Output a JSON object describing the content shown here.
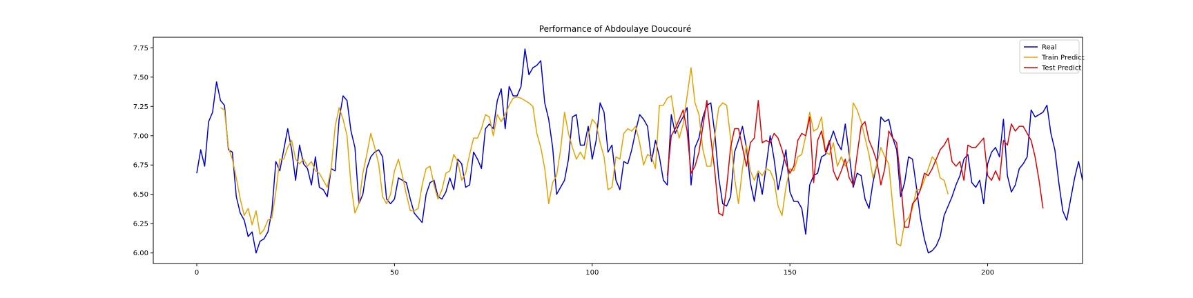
{
  "chart_data": {
    "type": "line",
    "title": "Performance of Abdoulaye Doucouré",
    "xlabel": "",
    "ylabel": "",
    "xlim": [
      -11,
      224
    ],
    "ylim": [
      5.91,
      7.84
    ],
    "x_ticks": [
      0,
      50,
      100,
      150,
      200
    ],
    "y_ticks": [
      6.0,
      6.25,
      6.5,
      6.75,
      7.0,
      7.25,
      7.5,
      7.75
    ],
    "y_tick_labels": [
      "6.00",
      "6.25",
      "6.50",
      "6.75",
      "7.00",
      "7.25",
      "7.50",
      "7.75"
    ],
    "grid": false,
    "legend_position": "top-right",
    "legend": [
      "Real",
      "Train Predict",
      "Test Predict"
    ],
    "series": [
      {
        "name": "Real",
        "color": "#0000cc",
        "x_start": 0,
        "values": [
          6.68,
          6.88,
          6.74,
          7.12,
          7.2,
          7.46,
          7.3,
          7.26,
          6.88,
          6.86,
          6.48,
          6.34,
          6.28,
          6.14,
          6.18,
          6.0,
          6.1,
          6.12,
          6.18,
          6.36,
          6.78,
          6.7,
          6.88,
          7.06,
          6.88,
          6.62,
          6.92,
          6.76,
          6.72,
          6.58,
          6.82,
          6.56,
          6.54,
          6.48,
          6.72,
          6.7,
          7.14,
          7.34,
          7.3,
          7.04,
          6.9,
          6.42,
          6.5,
          6.72,
          6.82,
          6.86,
          6.88,
          6.82,
          6.46,
          6.42,
          6.46,
          6.64,
          6.62,
          6.6,
          6.46,
          6.34,
          6.3,
          6.26,
          6.5,
          6.6,
          6.62,
          6.48,
          6.46,
          6.52,
          6.64,
          6.54,
          6.8,
          6.76,
          6.56,
          6.58,
          6.86,
          6.8,
          6.72,
          7.06,
          7.1,
          7.06,
          7.3,
          7.4,
          7.06,
          7.42,
          7.34,
          7.34,
          7.42,
          7.74,
          7.52,
          7.58,
          7.6,
          7.64,
          7.28,
          7.14,
          6.9,
          6.5,
          6.56,
          6.62,
          6.8,
          7.16,
          7.18,
          6.92,
          6.92,
          7.08,
          6.8,
          6.96,
          7.28,
          7.2,
          6.86,
          6.92,
          6.62,
          6.54,
          6.78,
          6.76,
          6.88,
          7.04,
          7.18,
          7.14,
          7.08,
          6.78,
          6.96,
          6.82,
          6.62,
          6.58,
          7.18,
          7.02,
          7.1,
          7.16,
          7.24,
          6.58,
          6.9,
          6.98,
          7.16,
          7.26,
          7.28,
          7.02,
          6.64,
          6.42,
          6.4,
          6.48,
          6.86,
          6.96,
          7.08,
          6.9,
          6.6,
          6.44,
          6.68,
          6.5,
          6.74,
          7.0,
          6.8,
          6.54,
          6.7,
          6.88,
          6.52,
          6.44,
          6.44,
          6.38,
          6.16,
          6.58,
          6.66,
          6.68,
          6.82,
          6.84,
          6.94,
          7.04,
          6.94,
          6.88,
          7.1,
          6.84,
          6.56,
          6.68,
          6.66,
          6.46,
          6.38,
          6.6,
          6.76,
          7.16,
          7.12,
          7.14,
          6.98,
          6.88,
          6.48,
          6.6,
          6.82,
          6.8,
          6.56,
          6.3,
          6.12,
          6.0,
          6.02,
          6.06,
          6.14,
          6.32,
          6.4,
          6.48,
          6.58,
          6.66,
          6.8,
          6.84,
          6.6,
          6.56,
          6.62,
          6.42,
          6.76,
          6.86,
          6.9,
          6.82,
          7.14,
          6.66,
          6.52,
          6.58,
          6.72,
          6.76,
          6.82,
          7.22,
          7.16,
          7.18,
          7.2,
          7.26,
          7.02,
          6.88,
          6.6,
          6.36,
          6.28,
          6.46,
          6.64,
          6.78,
          6.62
        ]
      },
      {
        "name": "Train Predict",
        "color": "#e6a100",
        "x_start": 6,
        "values": [
          7.24,
          7.22,
          6.9,
          6.8,
          6.64,
          6.46,
          6.32,
          6.38,
          6.24,
          6.36,
          6.16,
          6.2,
          6.28,
          6.3,
          6.52,
          6.8,
          6.8,
          6.9,
          6.96,
          6.8,
          6.76,
          6.8,
          6.74,
          6.78,
          6.7,
          6.68,
          6.62,
          6.56,
          6.72,
          7.08,
          7.24,
          7.14,
          7.0,
          6.58,
          6.34,
          6.42,
          6.68,
          6.84,
          7.02,
          6.9,
          6.76,
          6.48,
          6.42,
          6.5,
          6.7,
          6.8,
          6.66,
          6.5,
          6.36,
          6.36,
          6.38,
          6.58,
          6.72,
          6.74,
          6.58,
          6.46,
          6.54,
          6.68,
          6.7,
          6.84,
          6.78,
          6.62,
          6.68,
          6.84,
          6.98,
          6.98,
          7.06,
          7.18,
          7.16,
          7.0,
          7.18,
          7.12,
          7.18,
          7.26,
          7.32,
          7.33,
          7.32,
          7.3,
          7.28,
          7.25,
          7.02,
          6.9,
          6.72,
          6.42,
          6.6,
          6.66,
          6.88,
          7.2,
          7.02,
          6.9,
          6.8,
          6.86,
          6.8,
          7.0,
          7.14,
          7.1,
          6.94,
          6.82,
          6.54,
          6.56,
          6.82,
          6.8,
          7.02,
          7.06,
          7.04,
          7.08,
          6.94,
          6.75,
          6.84,
          6.82,
          6.72,
          7.26,
          7.26,
          7.32,
          7.34,
          7.12,
          6.98,
          7.1,
          7.34,
          7.58,
          7.28,
          7.18,
          6.88,
          6.74,
          6.74,
          7.0,
          7.24,
          7.28,
          7.26,
          6.98,
          6.64,
          6.42,
          6.72,
          6.92,
          6.7,
          6.62,
          6.7,
          6.66,
          6.72,
          6.7,
          6.62,
          6.4,
          6.32,
          6.56,
          6.72,
          6.7,
          6.82,
          6.84,
          7.0,
          7.2,
          7.04,
          7.06,
          7.16,
          6.86,
          6.84,
          6.94,
          6.74,
          6.82,
          6.74,
          6.8,
          7.28,
          7.22,
          7.12,
          6.98,
          6.84,
          6.64,
          6.76,
          6.9,
          6.82,
          6.76,
          6.4,
          6.08,
          6.06,
          6.26,
          6.3,
          6.38,
          6.54,
          6.54,
          6.62,
          6.72,
          6.82,
          6.78,
          6.64,
          6.62,
          6.5
        ]
      },
      {
        "name": "Test Predict",
        "color": "#dd0000",
        "x_start": 119,
        "values": [
          6.66,
          7.0,
          7.06,
          7.14,
          7.22,
          7.04,
          6.68,
          6.74,
          6.86,
          7.08,
          7.3,
          6.98,
          6.7,
          6.34,
          6.32,
          6.56,
          6.9,
          7.06,
          7.06,
          6.9,
          6.74,
          6.94,
          6.98,
          7.3,
          6.94,
          6.96,
          6.94,
          7.02,
          6.98,
          6.88,
          6.76,
          6.68,
          6.74,
          6.96,
          7.02,
          7.0,
          7.16,
          6.6,
          6.96,
          7.04,
          6.86,
          6.96,
          6.7,
          6.62,
          6.7,
          6.8,
          6.64,
          6.58,
          6.84,
          7.08,
          7.12,
          6.96,
          6.88,
          6.78,
          6.58,
          6.72,
          7.04,
          6.98,
          6.94,
          6.62,
          6.22,
          6.22,
          6.42,
          6.46,
          6.54,
          6.68,
          6.66,
          6.72,
          6.8,
          6.88,
          6.92,
          6.98,
          6.78,
          6.74,
          6.78,
          6.62,
          6.92,
          6.9,
          6.9,
          6.94,
          6.98,
          6.66,
          6.62,
          6.7,
          6.62,
          6.96,
          6.92,
          7.1,
          7.04,
          7.08,
          7.08,
          7.02,
          6.96,
          6.82,
          6.62,
          6.38
        ]
      }
    ]
  }
}
